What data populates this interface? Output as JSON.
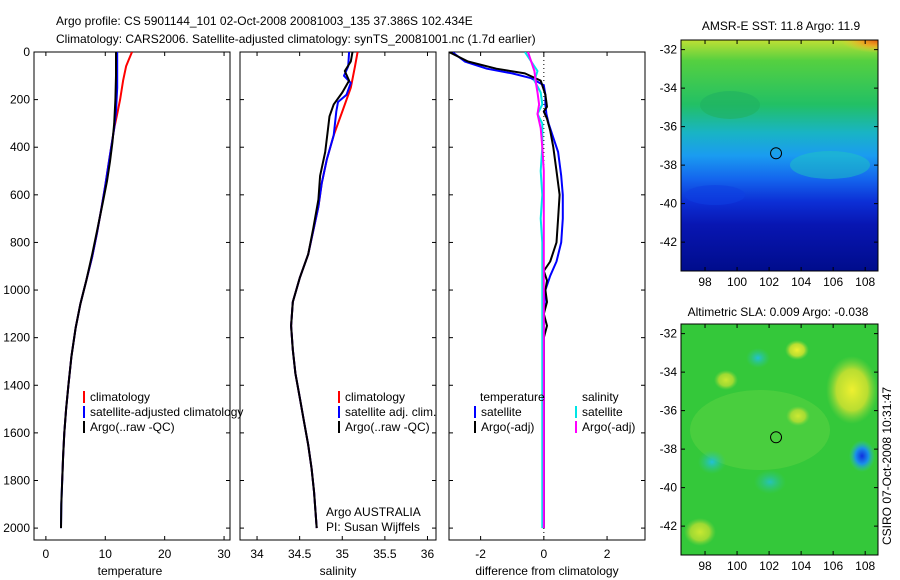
{
  "header": {
    "line1": "Argo profile: CS 5901144_101 02-Oct-2008 20081003_135 37.386S 102.434E",
    "line2": "Climatology: CARS2006. Satellite-adjusted climatology: synTS_20081001.nc (1.7d earlier)"
  },
  "side_label": "CSIRO 07-Oct-2008 10:31:47",
  "colors": {
    "red": "#ff0000",
    "blue": "#0000ff",
    "black": "#000000",
    "cyan": "#00e5e5",
    "magenta": "#ff00ff"
  },
  "chart_data": [
    {
      "type": "line",
      "panel": "temperature",
      "xlabel": "temperature",
      "xlim": [
        -2,
        31
      ],
      "ylim": [
        2050,
        0
      ],
      "xticks": [
        "0",
        "10",
        "20",
        "30"
      ],
      "yticks": [
        "0",
        "200",
        "400",
        "600",
        "800",
        "1000",
        "1200",
        "1400",
        "1600",
        "1800",
        "2000"
      ],
      "legend": [
        "climatology",
        "satellite-adjusted climatology",
        "Argo(..raw -QC)"
      ],
      "series": [
        {
          "name": "climatology",
          "color": "red",
          "points": [
            [
              14.5,
              0
            ],
            [
              14,
              30
            ],
            [
              13.5,
              60
            ],
            [
              13,
              120
            ],
            [
              12.5,
              200
            ],
            [
              12,
              260
            ],
            [
              11.5,
              320
            ],
            [
              11,
              400
            ],
            [
              10.5,
              480
            ],
            [
              10,
              560
            ],
            [
              9.4,
              650
            ],
            [
              8.6,
              760
            ],
            [
              7.8,
              860
            ],
            [
              6.8,
              960
            ],
            [
              5.8,
              1060
            ],
            [
              5,
              1160
            ],
            [
              4.3,
              1280
            ],
            [
              3.8,
              1400
            ],
            [
              3.4,
              1500
            ],
            [
              3.1,
              1600
            ],
            [
              2.9,
              1700
            ],
            [
              2.75,
              1800
            ]
          ]
        },
        {
          "name": "satellite-adjusted climatology",
          "color": "blue",
          "points": [
            [
              12,
              0
            ],
            [
              12,
              60
            ],
            [
              12,
              150
            ],
            [
              11.8,
              250
            ],
            [
              11.5,
              320
            ],
            [
              11,
              400
            ],
            [
              10.5,
              480
            ],
            [
              10,
              560
            ],
            [
              9.4,
              650
            ],
            [
              8.6,
              760
            ],
            [
              7.8,
              860
            ],
            [
              6.8,
              960
            ],
            [
              5.8,
              1060
            ],
            [
              5,
              1160
            ],
            [
              4.3,
              1280
            ],
            [
              3.8,
              1400
            ],
            [
              3.4,
              1500
            ],
            [
              3.1,
              1600
            ],
            [
              2.9,
              1700
            ],
            [
              2.75,
              1800
            ],
            [
              2.6,
              1900
            ],
            [
              2.55,
              2000
            ]
          ]
        },
        {
          "name": "Argo(..raw -QC)",
          "color": "black",
          "points": [
            [
              11.8,
              0
            ],
            [
              11.8,
              100
            ],
            [
              11.7,
              200
            ],
            [
              11.5,
              300
            ],
            [
              11.2,
              380
            ],
            [
              10.8,
              460
            ],
            [
              10.3,
              540
            ],
            [
              9.6,
              630
            ],
            [
              8.7,
              740
            ],
            [
              7.8,
              850
            ],
            [
              6.8,
              960
            ],
            [
              5.8,
              1060
            ],
            [
              5,
              1160
            ],
            [
              4.3,
              1280
            ],
            [
              3.8,
              1400
            ],
            [
              3.4,
              1500
            ],
            [
              3.1,
              1600
            ],
            [
              2.9,
              1700
            ],
            [
              2.75,
              1800
            ],
            [
              2.6,
              1900
            ],
            [
              2.55,
              2000
            ]
          ]
        }
      ]
    },
    {
      "type": "line",
      "panel": "salinity",
      "xlabel": "salinity",
      "xlim": [
        33.8,
        36.1
      ],
      "ylim": [
        2050,
        0
      ],
      "xticks": [
        "34",
        "34.5",
        "35",
        "35.5",
        "36"
      ],
      "legend": [
        "climatology",
        "satellite adj. clim.",
        "Argo(..raw -QC)"
      ],
      "annotation": [
        "Argo AUSTRALIA",
        "PI: Susan Wijffels"
      ],
      "series": [
        {
          "name": "climatology",
          "color": "red",
          "points": [
            [
              35.18,
              0
            ],
            [
              35.15,
              60
            ],
            [
              35.1,
              150
            ],
            [
              35.0,
              250
            ],
            [
              34.9,
              350
            ],
            [
              34.82,
              450
            ],
            [
              34.76,
              550
            ],
            [
              34.72,
              650
            ],
            [
              34.66,
              750
            ],
            [
              34.6,
              850
            ],
            [
              34.5,
              950
            ],
            [
              34.42,
              1050
            ],
            [
              34.4,
              1150
            ],
            [
              34.42,
              1250
            ],
            [
              34.45,
              1350
            ],
            [
              34.5,
              1450
            ],
            [
              34.55,
              1550
            ],
            [
              34.6,
              1650
            ],
            [
              34.64,
              1750
            ],
            [
              34.67,
              1850
            ],
            [
              34.7,
              2000
            ]
          ]
        },
        {
          "name": "satellite adj. clim.",
          "color": "blue",
          "points": [
            [
              35.08,
              0
            ],
            [
              35.07,
              60
            ],
            [
              35.02,
              100
            ],
            [
              35.1,
              130
            ],
            [
              35.05,
              180
            ],
            [
              34.95,
              210
            ],
            [
              34.93,
              250
            ],
            [
              34.9,
              350
            ],
            [
              34.82,
              450
            ],
            [
              34.76,
              550
            ],
            [
              34.72,
              650
            ],
            [
              34.66,
              750
            ],
            [
              34.6,
              850
            ],
            [
              34.5,
              950
            ],
            [
              34.42,
              1050
            ],
            [
              34.4,
              1150
            ],
            [
              34.42,
              1250
            ],
            [
              34.45,
              1350
            ],
            [
              34.5,
              1450
            ],
            [
              34.55,
              1550
            ],
            [
              34.6,
              1650
            ],
            [
              34.64,
              1750
            ],
            [
              34.67,
              1850
            ],
            [
              34.7,
              2000
            ]
          ]
        },
        {
          "name": "Argo(..raw -QC)",
          "color": "black",
          "points": [
            [
              35.12,
              0
            ],
            [
              35.1,
              40
            ],
            [
              35.03,
              80
            ],
            [
              35.08,
              120
            ],
            [
              35.0,
              170
            ],
            [
              34.9,
              220
            ],
            [
              34.85,
              270
            ],
            [
              34.83,
              330
            ],
            [
              34.8,
              420
            ],
            [
              34.74,
              520
            ],
            [
              34.72,
              620
            ],
            [
              34.66,
              740
            ],
            [
              34.6,
              850
            ],
            [
              34.5,
              950
            ],
            [
              34.42,
              1050
            ],
            [
              34.4,
              1150
            ],
            [
              34.42,
              1250
            ],
            [
              34.45,
              1350
            ],
            [
              34.5,
              1450
            ],
            [
              34.55,
              1550
            ],
            [
              34.6,
              1650
            ],
            [
              34.64,
              1750
            ],
            [
              34.67,
              1850
            ],
            [
              34.7,
              2000
            ]
          ]
        }
      ]
    },
    {
      "type": "line",
      "panel": "difference",
      "xlabel": "difference from climatology",
      "xlim": [
        -3,
        3.2
      ],
      "ylim": [
        2050,
        0
      ],
      "xticks": [
        "-2",
        "0",
        "2"
      ],
      "legend_left": {
        "title": "temperature",
        "items": [
          "satellite",
          "Argo(-adj)"
        ]
      },
      "legend_right": {
        "title": "salinity",
        "items": [
          "satellite",
          "Argo(-adj)"
        ]
      },
      "series": [
        {
          "name": "temperature satellite",
          "color": "blue",
          "points": [
            [
              -2.9,
              0
            ],
            [
              -2.5,
              40
            ],
            [
              -1.8,
              70
            ],
            [
              -1,
              90
            ],
            [
              -0.4,
              110
            ],
            [
              0,
              140
            ],
            [
              0.05,
              180
            ],
            [
              0.05,
              220
            ],
            [
              0.08,
              260
            ],
            [
              0.15,
              300
            ],
            [
              0.3,
              360
            ],
            [
              0.45,
              420
            ],
            [
              0.55,
              520
            ],
            [
              0.6,
              600
            ],
            [
              0.6,
              700
            ],
            [
              0.55,
              800
            ],
            [
              0.4,
              880
            ],
            [
              0.2,
              940
            ],
            [
              0.05,
              1000
            ],
            [
              0,
              1100
            ],
            [
              0,
              1200
            ],
            [
              0,
              2000
            ]
          ]
        },
        {
          "name": "temperature Argo(-adj)",
          "color": "black",
          "points": [
            [
              -3,
              0
            ],
            [
              -2.4,
              40
            ],
            [
              -1.5,
              70
            ],
            [
              -0.6,
              90
            ],
            [
              -0.1,
              120
            ],
            [
              0.05,
              180
            ],
            [
              0.1,
              230
            ],
            [
              0,
              250
            ],
            [
              0.1,
              280
            ],
            [
              0.2,
              330
            ],
            [
              0.3,
              400
            ],
            [
              0.4,
              500
            ],
            [
              0.5,
              600
            ],
            [
              0.45,
              700
            ],
            [
              0.4,
              800
            ],
            [
              0.2,
              880
            ],
            [
              0,
              920
            ],
            [
              0.1,
              960
            ],
            [
              0.05,
              1000
            ],
            [
              0.1,
              1050
            ],
            [
              0,
              1100
            ],
            [
              0.1,
              1150
            ],
            [
              0,
              1200
            ],
            [
              0,
              2000
            ]
          ]
        },
        {
          "name": "salinity satellite",
          "color": "cyan",
          "points": [
            [
              -0.6,
              0
            ],
            [
              -0.4,
              40
            ],
            [
              -0.2,
              80
            ],
            [
              -0.3,
              120
            ],
            [
              -0.1,
              170
            ],
            [
              -0.05,
              220
            ],
            [
              -0.2,
              260
            ],
            [
              -0.05,
              300
            ],
            [
              -0.05,
              400
            ],
            [
              -0.1,
              500
            ],
            [
              -0.05,
              600
            ],
            [
              -0.1,
              700
            ],
            [
              -0.05,
              800
            ],
            [
              -0.05,
              1000
            ],
            [
              -0.05,
              1200
            ],
            [
              -0.05,
              1400
            ],
            [
              -0.05,
              1600
            ],
            [
              -0.05,
              2000
            ]
          ]
        },
        {
          "name": "salinity Argo(-adj)",
          "color": "magenta",
          "points": [
            [
              -0.5,
              0
            ],
            [
              -0.4,
              40
            ],
            [
              -0.3,
              80
            ],
            [
              -0.25,
              130
            ],
            [
              -0.2,
              170
            ],
            [
              -0.15,
              220
            ],
            [
              -0.2,
              260
            ],
            [
              -0.1,
              320
            ],
            [
              -0.05,
              400
            ],
            [
              0,
              500
            ],
            [
              0,
              600
            ],
            [
              0,
              800
            ],
            [
              0,
              1000
            ],
            [
              0,
              1200
            ],
            [
              0,
              1400
            ],
            [
              0,
              1600
            ],
            [
              0,
              2000
            ]
          ]
        }
      ]
    },
    {
      "type": "heatmap",
      "panel": "sst-map",
      "title": "AMSR-E SST: 11.8 Argo: 11.9",
      "xlim": [
        96.5,
        108.8
      ],
      "ylim": [
        -43.5,
        -31.5
      ],
      "xticks": [
        "98",
        "100",
        "102",
        "104",
        "106",
        "108"
      ],
      "yticks": [
        "-32",
        "-34",
        "-36",
        "-38",
        "-40",
        "-42"
      ],
      "marker": [
        102.434,
        -37.386
      ]
    },
    {
      "type": "heatmap",
      "panel": "sla-map",
      "title": "Altimetric SLA: 0.009 Argo: -0.038",
      "xlim": [
        96.5,
        108.8
      ],
      "ylim": [
        -43.5,
        -31.5
      ],
      "xticks": [
        "98",
        "100",
        "102",
        "104",
        "106",
        "108"
      ],
      "yticks": [
        "-32",
        "-34",
        "-36",
        "-38",
        "-40",
        "-42"
      ],
      "marker": [
        102.434,
        -37.386
      ]
    }
  ]
}
